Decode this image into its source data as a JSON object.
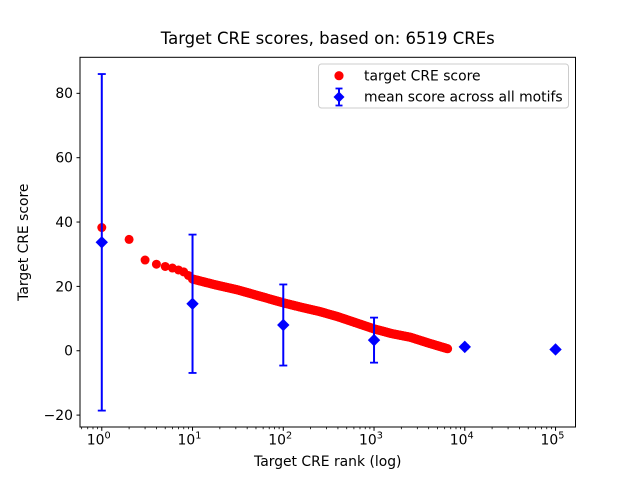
{
  "window": {
    "background": "#ffffff"
  },
  "chart_data": {
    "type": "scatter",
    "title": "Target CRE scores, based on: 6519 CREs",
    "xlabel": "Target CRE rank (log)",
    "ylabel": "Target CRE score",
    "x_scale": "log",
    "xlim_log10": [
      -0.24,
      5.22
    ],
    "ylim": [
      -23.7,
      91.2
    ],
    "x_ticks_log10": [
      0,
      1,
      2,
      3,
      4,
      5
    ],
    "x_tick_labels": [
      "10⁰",
      "10¹",
      "10²",
      "10³",
      "10⁴",
      "10⁵"
    ],
    "y_ticks": [
      -20,
      0,
      20,
      40,
      60,
      80
    ],
    "y_tick_labels": [
      "−20",
      "0",
      "20",
      "40",
      "60",
      "80"
    ],
    "grid": false,
    "legend_position": "upper right",
    "colors": {
      "target": "#ff0000",
      "mean": "#0000ff",
      "axes": "#000000",
      "legend_border": "#cccccc",
      "background": "#ffffff"
    },
    "series": [
      {
        "name": "target CRE score",
        "marker": "circle",
        "color": "#ff0000",
        "n_points": 6519,
        "curve_log10rank_score": [
          [
            0,
            38.3
          ],
          [
            0.301,
            34.6
          ],
          [
            0.477,
            28.2
          ],
          [
            0.602,
            26.9
          ],
          [
            0.699,
            26.2
          ],
          [
            0.778,
            25.7
          ],
          [
            0.845,
            25.1
          ],
          [
            0.903,
            24.5
          ],
          [
            0.954,
            23.4
          ],
          [
            1.0,
            22.3
          ],
          [
            1.25,
            20.5
          ],
          [
            1.5,
            18.9
          ],
          [
            1.75,
            16.9
          ],
          [
            2.0,
            14.9
          ],
          [
            2.2,
            13.5
          ],
          [
            2.4,
            12.2
          ],
          [
            2.6,
            10.6
          ],
          [
            2.8,
            8.7
          ],
          [
            3.0,
            6.8
          ],
          [
            3.2,
            5.3
          ],
          [
            3.4,
            4.2
          ],
          [
            3.6,
            2.4
          ],
          [
            3.814,
            0.6
          ]
        ]
      },
      {
        "name": "mean score across all motifs",
        "marker": "diamond",
        "color": "#0000ff",
        "points": [
          {
            "rank": 1,
            "mean": 33.7,
            "err": 52.3
          },
          {
            "rank": 10,
            "mean": 14.6,
            "err": 21.5
          },
          {
            "rank": 100,
            "mean": 8.0,
            "err": 12.6
          },
          {
            "rank": 1000,
            "mean": 3.3,
            "err": 7.0
          },
          {
            "rank": 10000,
            "mean": 1.2,
            "err": 0.5
          },
          {
            "rank": 100000,
            "mean": 0.4,
            "err": 0.3
          }
        ]
      }
    ]
  }
}
